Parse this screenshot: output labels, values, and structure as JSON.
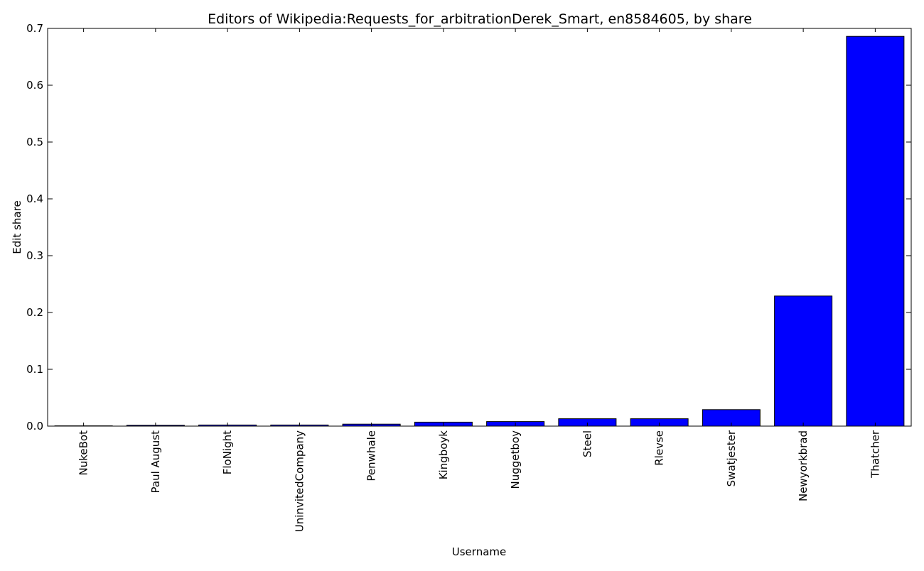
{
  "chart_data": {
    "type": "bar",
    "title": "Editors of Wikipedia:Requests_for_arbitrationDerek_Smart, en8584605, by share",
    "xlabel": "Username",
    "ylabel": "Edit share",
    "ylim": [
      0,
      0.7
    ],
    "yticks": [
      "0.0",
      "0.1",
      "0.2",
      "0.3",
      "0.4",
      "0.5",
      "0.6",
      "0.7"
    ],
    "grid": false,
    "legend": "none",
    "categories": [
      "NukeBot",
      "Paul August",
      "FloNight",
      "UninvitedCompany",
      "Penwhale",
      "Kingboyk",
      "Nuggetboy",
      "Steel",
      "Rlevse",
      "Swatjester",
      "Newyorkbrad",
      "Thatcher"
    ],
    "values": [
      0.0005,
      0.0015,
      0.002,
      0.002,
      0.0035,
      0.007,
      0.008,
      0.013,
      0.013,
      0.029,
      0.229,
      0.686
    ],
    "colors": {
      "bar": "#0000ff",
      "edge": "#000000",
      "axis": "#000000",
      "background": "#ffffff"
    }
  }
}
